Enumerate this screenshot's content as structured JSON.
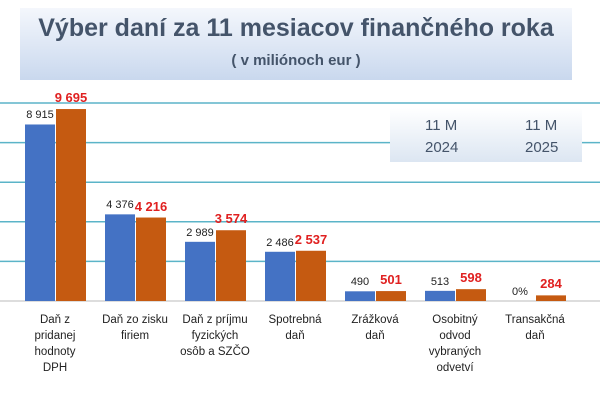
{
  "chart_data": {
    "type": "bar",
    "title": "Výber daní za 11 mesiacov finančného roka",
    "subtitle": "( v miliónoch eur )",
    "categories": [
      "Daň z\npridanej\nhodnoty\nDPH",
      "Daň zo zisku\nfiriem",
      "Daň z príjmu\nfyzických\nosôb a SZČO",
      "Spotrebná\ndaň",
      "Zrážková\ndaň",
      "Osobitný\nodvod\nvybraných\nodvetví",
      "Transakčná\ndaň"
    ],
    "series": [
      {
        "name": "11 M\n2024",
        "color": "#4472c4",
        "values": [
          8915,
          4376,
          2989,
          2486,
          490,
          513,
          0
        ],
        "value_labels": [
          "8 915",
          "4 376",
          "2 989",
          "2 486",
          "490",
          "513",
          "0%"
        ]
      },
      {
        "name": "11 M\n2025",
        "color": "#c55a11",
        "values": [
          9695,
          4216,
          3574,
          2537,
          501,
          598,
          284
        ],
        "value_labels": [
          "9 695",
          "4 216",
          "3 574",
          "2 537",
          "501",
          "598",
          "284"
        ]
      }
    ],
    "value_label_colors": [
      "#222222",
      "#e02020"
    ],
    "ylim": [
      0,
      10000
    ],
    "yticks": [
      2000,
      4000,
      6000,
      8000,
      10000
    ],
    "grid": true,
    "grid_color": "#5bb4c8"
  }
}
